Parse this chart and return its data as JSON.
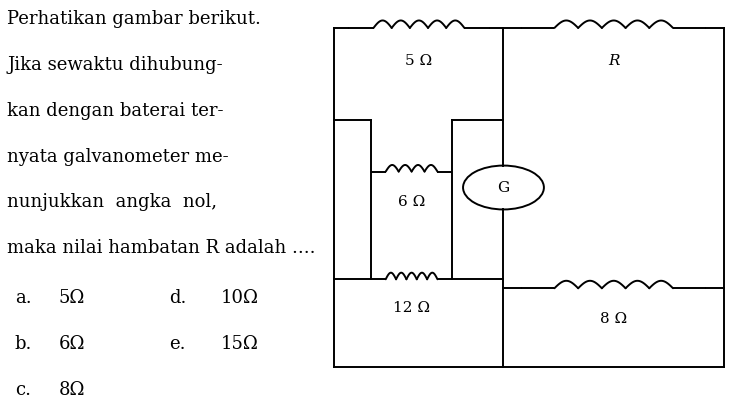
{
  "bg_color": "#ffffff",
  "text_color": "#000000",
  "question_lines": [
    "Perhatikan gambar berikut.",
    "Jika sewaktu dihubung-",
    "kan dengan baterai ter-",
    "nyata galvanometer me-",
    "nunjukkan  angka  nol,",
    "maka nilai hambatan R adalah ...."
  ],
  "ans_left": [
    [
      "a.",
      "5Ω"
    ],
    [
      "b.",
      "6Ω"
    ],
    [
      "c.",
      "8Ω"
    ]
  ],
  "ans_right": [
    [
      "d.",
      "10Ω"
    ],
    [
      "e.",
      "15Ω"
    ]
  ],
  "fq": 13,
  "fa": 13,
  "fl": 11,
  "circuit": {
    "xl": 0.455,
    "xr": 0.985,
    "yt": 0.93,
    "yb": 0.08,
    "xm": 0.685,
    "xi_l": 0.505,
    "xi_r": 0.615,
    "yi_t": 0.7,
    "yi_b": 0.3
  }
}
